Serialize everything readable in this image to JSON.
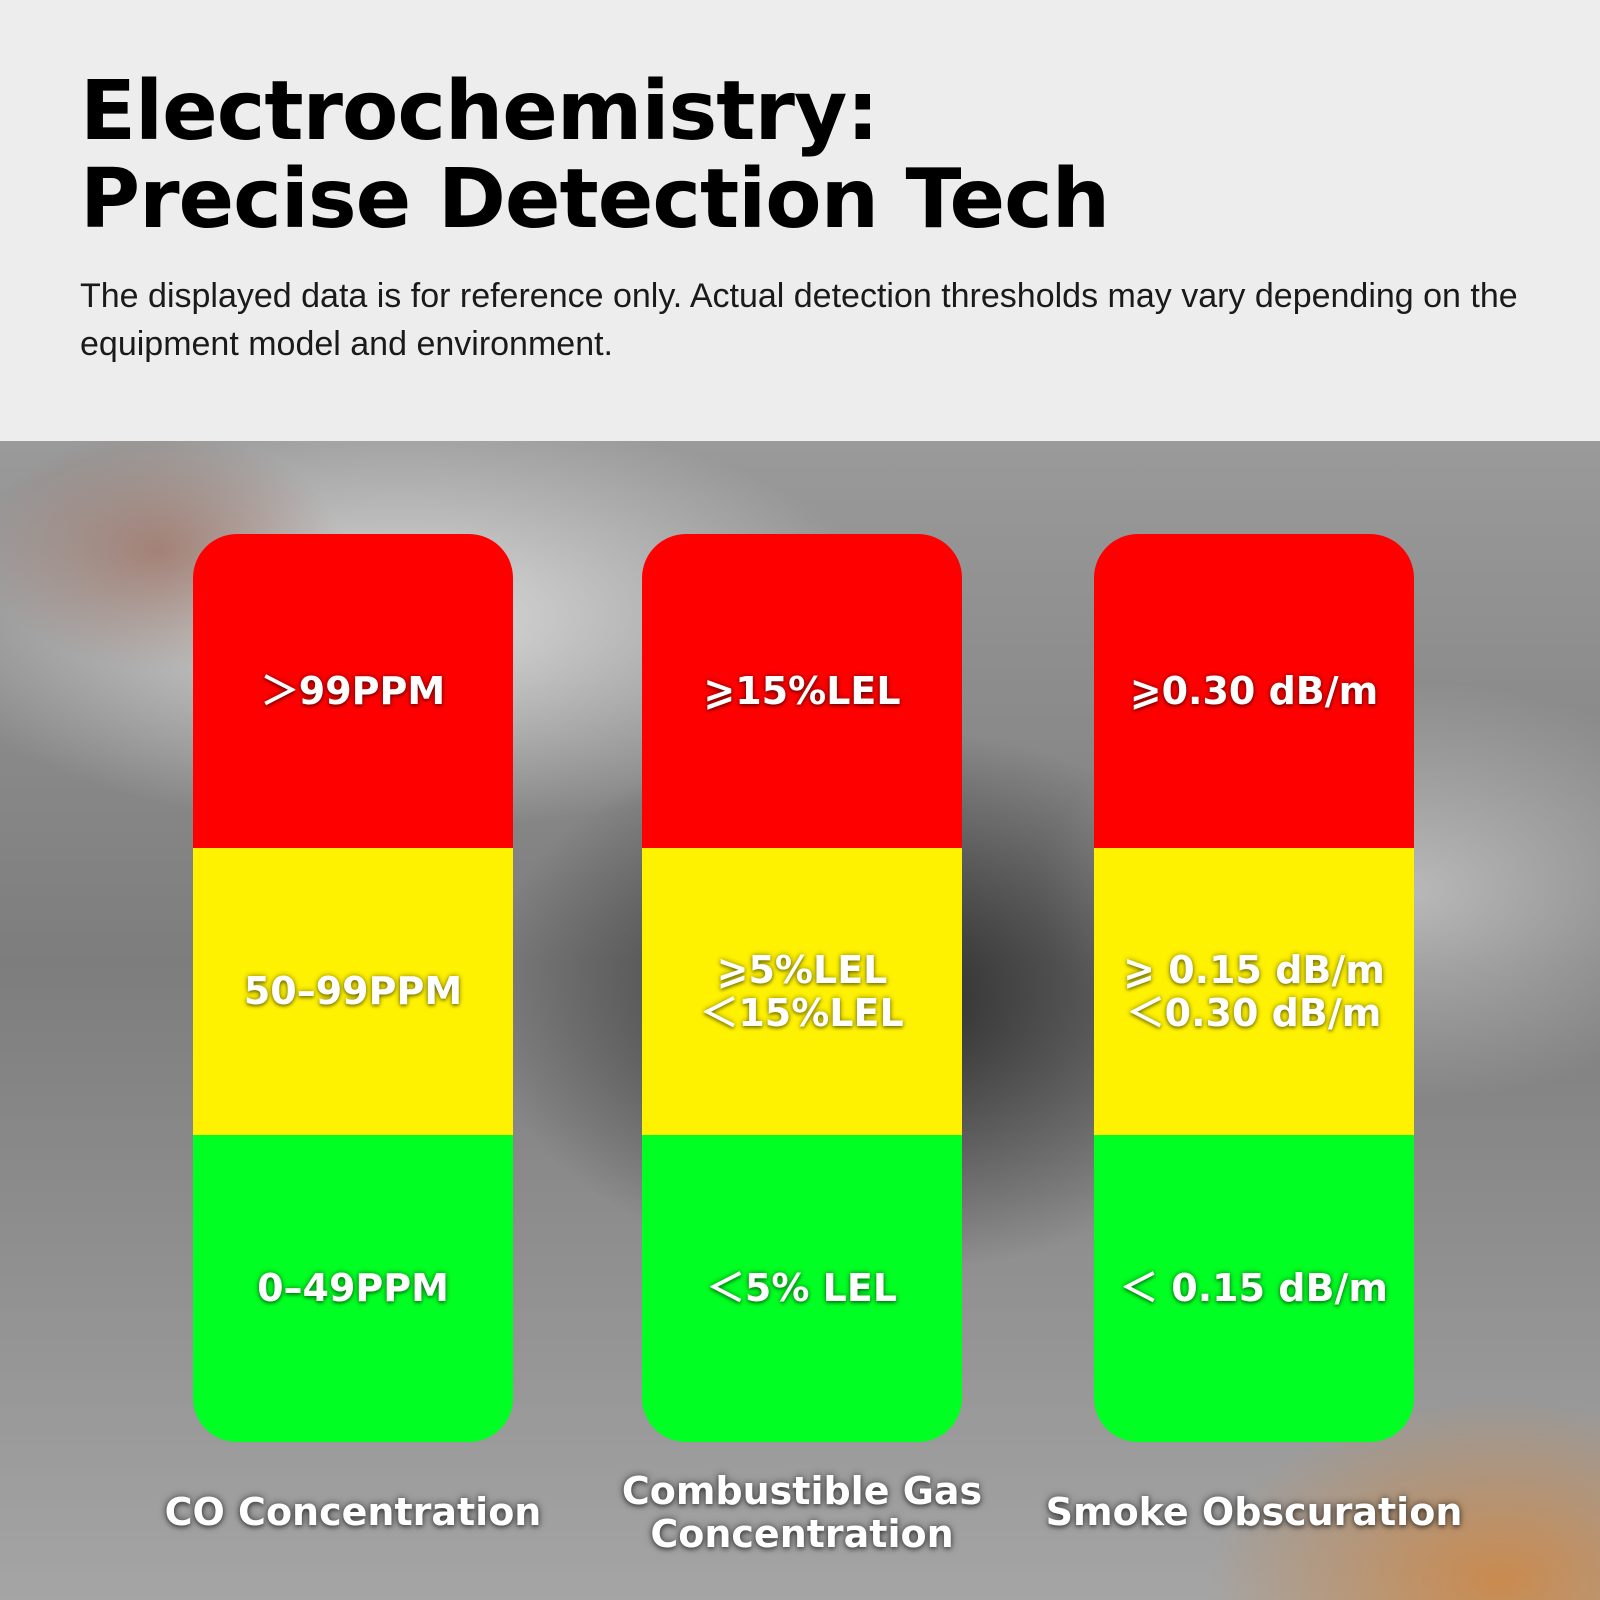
{
  "header": {
    "title_line1": "Electrochemistry:",
    "title_line2": "Precise Detection Tech",
    "subtitle": "The displayed data is for reference only. Actual detection thresholds may vary depending on the equipment model and environment."
  },
  "colors": {
    "danger": "#ff0000",
    "warning": "#fff200",
    "safe": "#00ff22"
  },
  "columns": [
    {
      "label_lines": [
        "CO Concentration"
      ],
      "segments": {
        "red": [
          "＞99PPM"
        ],
        "yellow": [
          "50–99PPM"
        ],
        "green": [
          "0–49PPM"
        ]
      }
    },
    {
      "label_lines": [
        "Combustible Gas",
        "Concentration"
      ],
      "segments": {
        "red": [
          "⩾15%LEL"
        ],
        "yellow": [
          "⩾5%LEL",
          "＜15%LEL"
        ],
        "green": [
          "＜5% LEL"
        ]
      }
    },
    {
      "label_lines": [
        "Smoke Obscuration"
      ],
      "segments": {
        "red": [
          "⩾0.30 dB/m"
        ],
        "yellow": [
          "⩾ 0.15 dB/m",
          "＜0.30 dB/m"
        ],
        "green": [
          "＜ 0.15 dB/m"
        ]
      }
    }
  ]
}
